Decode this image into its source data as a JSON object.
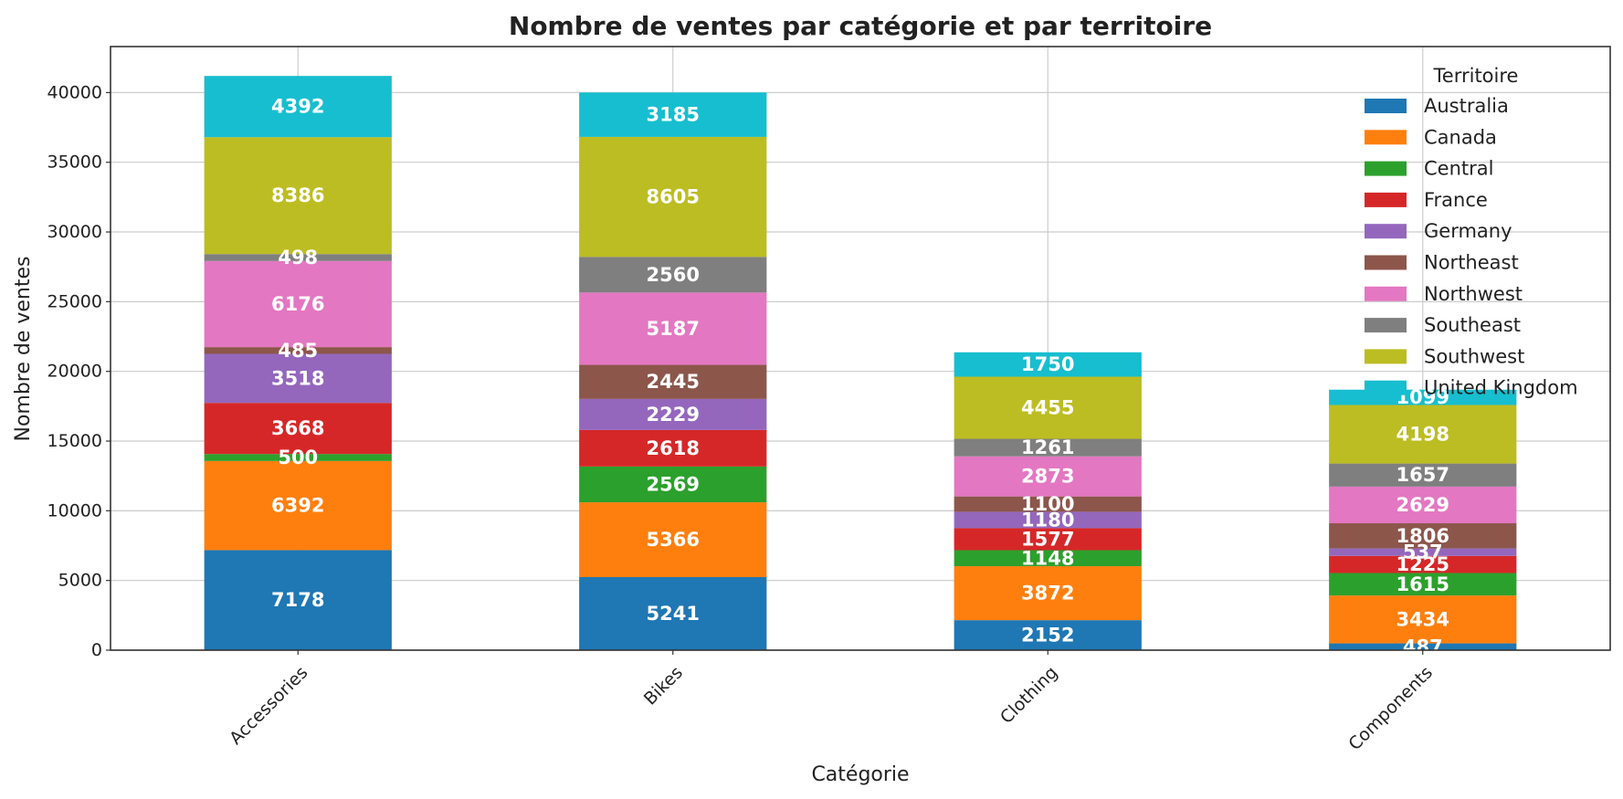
{
  "chart_data": {
    "type": "bar",
    "stacked": true,
    "title": "Nombre de ventes par catégorie et par territoire",
    "xlabel": "Catégorie",
    "ylabel": "Nombre de ventes",
    "ylim": [
      0,
      43300
    ],
    "yticks": [
      0,
      5000,
      10000,
      15000,
      20000,
      25000,
      30000,
      35000,
      40000
    ],
    "grid": true,
    "legend": {
      "title": "Territoire",
      "placement": "top-right"
    },
    "categories": [
      "Accessories",
      "Bikes",
      "Clothing",
      "Components"
    ],
    "series": [
      {
        "name": "Australia",
        "color": "#1f77b4",
        "values": [
          7178,
          5241,
          2152,
          487
        ]
      },
      {
        "name": "Canada",
        "color": "#ff7f0e",
        "values": [
          6392,
          5366,
          3872,
          3434
        ]
      },
      {
        "name": "Central",
        "color": "#2ca02c",
        "values": [
          500,
          2569,
          1148,
          1615
        ]
      },
      {
        "name": "France",
        "color": "#d62728",
        "values": [
          3668,
          2618,
          1577,
          1225
        ]
      },
      {
        "name": "Germany",
        "color": "#9467bd",
        "values": [
          3518,
          2229,
          1180,
          537
        ]
      },
      {
        "name": "Northeast",
        "color": "#8c564b",
        "values": [
          485,
          2445,
          1100,
          1806
        ]
      },
      {
        "name": "Northwest",
        "color": "#e377c2",
        "values": [
          6176,
          5187,
          2873,
          2629
        ]
      },
      {
        "name": "Southeast",
        "color": "#7f7f7f",
        "values": [
          498,
          2560,
          1261,
          1657
        ]
      },
      {
        "name": "Southwest",
        "color": "#bcbd22",
        "values": [
          8386,
          8605,
          4455,
          4198
        ]
      },
      {
        "name": "United Kingdom",
        "color": "#17becf",
        "values": [
          4392,
          3185,
          1750,
          1099
        ]
      }
    ]
  }
}
